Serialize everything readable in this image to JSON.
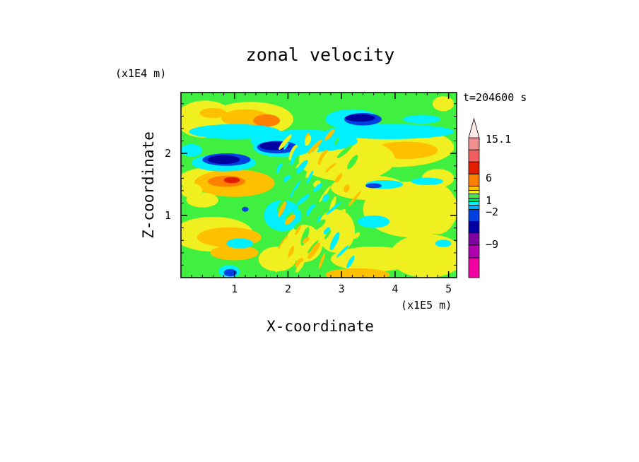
{
  "chart_data": {
    "type": "heatmap",
    "title": "zonal velocity",
    "xlabel": "X-coordinate",
    "ylabel": "Z-coordinate",
    "x_unit_label": "(x1E5 m)",
    "y_unit_label": "(x1E4 m)",
    "time_label": "t=204600 s",
    "xlim": [
      0,
      5.15
    ],
    "ylim": [
      0,
      2.98
    ],
    "xticks": [
      1,
      2,
      3,
      4,
      5
    ],
    "yticks": [
      1,
      2
    ],
    "colorbar": {
      "labels": [
        "15.1",
        "6",
        "1",
        "−2",
        "−9"
      ],
      "label_values": [
        15.1,
        6,
        1,
        -2,
        -9
      ],
      "levels": [
        -13,
        -11,
        -9,
        -7,
        -5,
        -3,
        -2,
        -1,
        0,
        1,
        2,
        4,
        6,
        8,
        10,
        12,
        15.1
      ],
      "colors": [
        "#f000a0",
        "#b000b0",
        "#8000a0",
        "#0000a0",
        "#0040e0",
        "#00b0ff",
        "#00f0ff",
        "#00e060",
        "#40f040",
        "#f0f020",
        "#ffc000",
        "#ff8000",
        "#e02000",
        "#f06060",
        "#f09090",
        "#f8c8c8"
      ],
      "extend": "max"
    },
    "bands": [
      {
        "z": 0.35,
        "color": "#ffc000",
        "value": 2
      },
      {
        "z": 0.9,
        "color": "#00f0ff",
        "value": -2
      },
      {
        "z": 1.6,
        "color": "#ff8000",
        "value": 4
      },
      {
        "z": 1.9,
        "color": "#0000a0",
        "value": -7
      },
      {
        "z": 2.1,
        "color": "#0000a0",
        "value": -7
      },
      {
        "z": 2.5,
        "color": "#0000a0",
        "value": -7
      },
      {
        "z": 2.55,
        "color": "#ff8000",
        "value": 4
      },
      {
        "z": 2.05,
        "color": "#ffc000",
        "value": 2
      }
    ]
  }
}
